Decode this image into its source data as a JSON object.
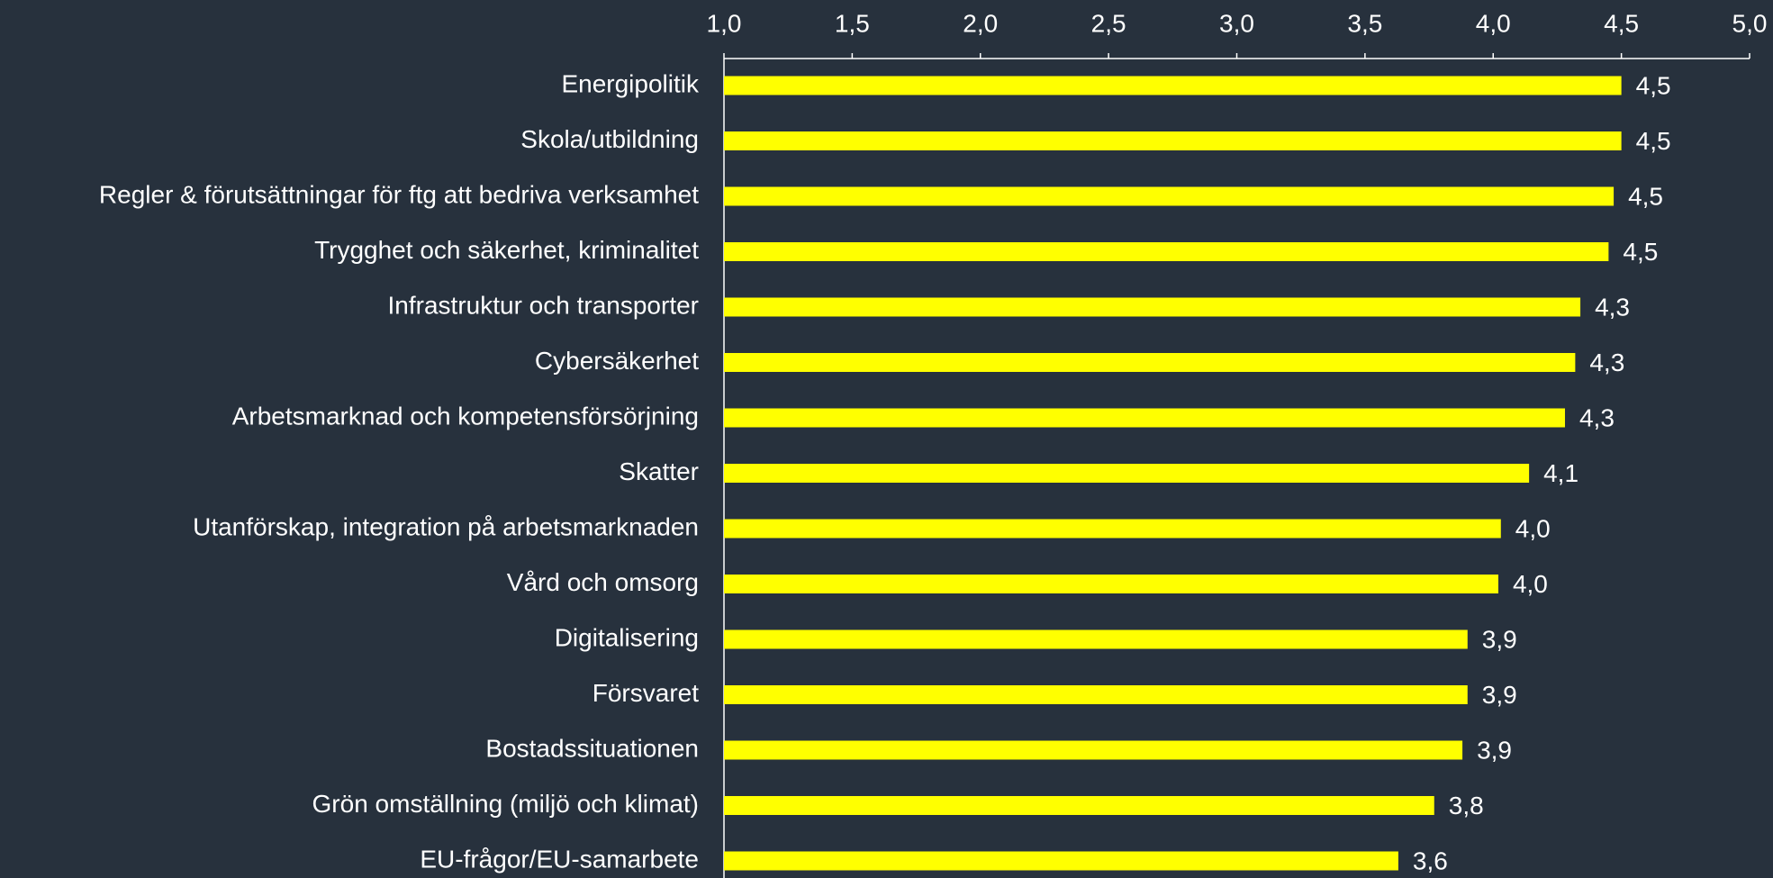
{
  "chart_data": {
    "type": "bar",
    "orientation": "horizontal",
    "axis_position": "top",
    "categories": [
      "Energipolitik",
      "Skola/utbildning",
      "Regler & förutsättningar för ftg att bedriva verksamhet",
      "Trygghet och säkerhet, kriminalitet",
      "Infrastruktur och transporter",
      "Cybersäkerhet",
      "Arbetsmarknad och kompetensförsörjning",
      "Skatter",
      "Utanförskap, integration på arbetsmarknaden",
      "Vård och omsorg",
      "Digitalisering",
      "Försvaret",
      "Bostadssituationen",
      "Grön omställning (miljö och klimat)",
      "EU-frågor/EU-samarbete"
    ],
    "values": [
      4.5,
      4.5,
      4.47,
      4.45,
      4.34,
      4.32,
      4.28,
      4.14,
      4.03,
      4.02,
      3.9,
      3.9,
      3.88,
      3.77,
      3.63
    ],
    "value_labels": [
      "4,5",
      "4,5",
      "4,5",
      "4,5",
      "4,3",
      "4,3",
      "4,3",
      "4,1",
      "4,0",
      "4,0",
      "3,9",
      "3,9",
      "3,9",
      "3,8",
      "3,6"
    ],
    "color": "#ffff00",
    "xlim": [
      1.0,
      5.0
    ],
    "xticks": [
      {
        "value": 1.0,
        "label": "1,0"
      },
      {
        "value": 1.5,
        "label": "1,5"
      },
      {
        "value": 2.0,
        "label": "2,0"
      },
      {
        "value": 2.5,
        "label": "2,5"
      },
      {
        "value": 3.0,
        "label": "3,0"
      },
      {
        "value": 3.5,
        "label": "3,5"
      },
      {
        "value": 4.0,
        "label": "4,0"
      },
      {
        "value": 4.5,
        "label": "4,5"
      },
      {
        "value": 5.0,
        "label": "5,0"
      }
    ],
    "grid": false
  }
}
